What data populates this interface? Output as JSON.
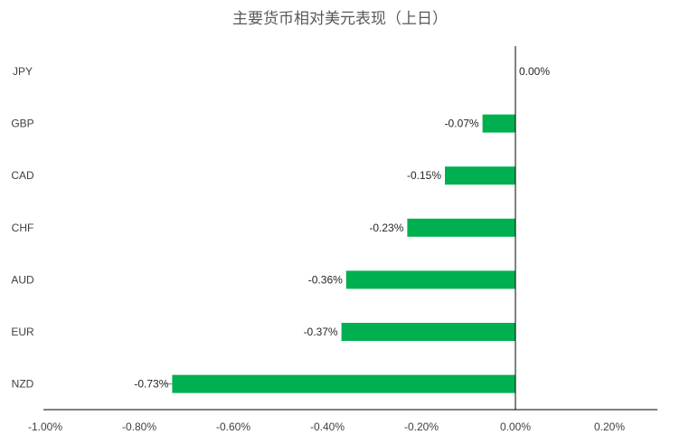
{
  "chart_data": {
    "type": "bar",
    "orientation": "horizontal",
    "title": "主要货币相对美元表现（上日）",
    "categories": [
      "JPY",
      "GBP",
      "CAD",
      "CHF",
      "AUD",
      "EUR",
      "NZD"
    ],
    "values": [
      0.0,
      -0.07,
      -0.15,
      -0.23,
      -0.36,
      -0.37,
      -0.73
    ],
    "data_labels": [
      "0.00%",
      "-0.07%",
      "-0.15%",
      "-0.23%",
      "-0.36%",
      "-0.37%",
      "-0.73%"
    ],
    "xlim": [
      -1.0,
      0.2
    ],
    "x_ticks": [
      -1.0,
      -0.8,
      -0.6,
      -0.4,
      -0.2,
      0.0,
      0.2
    ],
    "x_tick_labels": [
      "-1.00%",
      "-0.80%",
      "-0.60%",
      "-0.40%",
      "-0.20%",
      "0.00%",
      "0.20%"
    ],
    "bar_color": "#00b050",
    "axis_color": "#000000",
    "grid": false,
    "legend": "none"
  }
}
